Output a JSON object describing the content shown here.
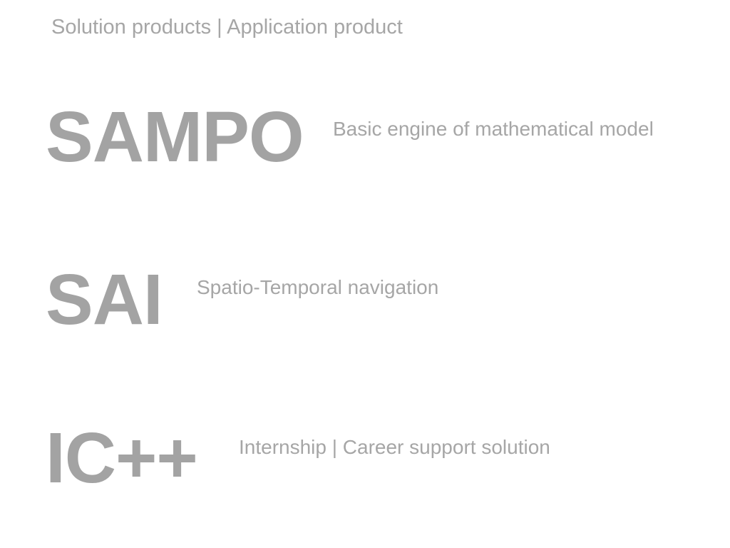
{
  "header": {
    "title": "Solution products | Application product"
  },
  "products": [
    {
      "name": "SAMPO",
      "description": "Basic engine of mathematical model"
    },
    {
      "name": "SAI",
      "description": "Spatio-Temporal navigation"
    },
    {
      "name": "IC++",
      "description": "Internship | Career support solution"
    }
  ],
  "colors": {
    "background": "#ffffff",
    "text": "#a4a4a4"
  }
}
